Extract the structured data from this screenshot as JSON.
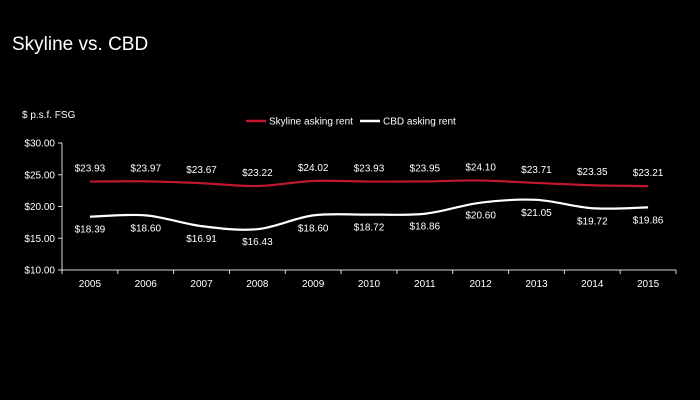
{
  "slide": {
    "title": "Skyline vs. CBD"
  },
  "colors": {
    "background": "#000000",
    "skyline": "#c0172f",
    "cbd": "#ffffff",
    "axis": "#d9d9d9"
  },
  "chart_data": {
    "type": "line",
    "title": "Skyline vs. CBD",
    "ylabel": "$ p.s.f. FSG",
    "xlabel": "",
    "x": [
      "2005",
      "2006",
      "2007",
      "2008",
      "2009",
      "2010",
      "2011",
      "2012",
      "2013",
      "2014",
      "2015"
    ],
    "ylim": [
      10,
      30
    ],
    "yticks": [
      "$10.00",
      "$15.00",
      "$20.00",
      "$25.00",
      "$30.00"
    ],
    "ytick_values": [
      10,
      15,
      20,
      25,
      30
    ],
    "grid": false,
    "legend_position": "top",
    "series": [
      {
        "name": "Skyline asking rent",
        "color": "#c0172f",
        "values": [
          23.93,
          23.97,
          23.67,
          23.22,
          24.02,
          23.93,
          23.95,
          24.1,
          23.71,
          23.35,
          23.21
        ],
        "labels": [
          "$23.93",
          "$23.97",
          "$23.67",
          "$23.22",
          "$24.02",
          "$23.93",
          "$23.95",
          "$24.10",
          "$23.71",
          "$23.35",
          "$23.21"
        ]
      },
      {
        "name": "CBD asking rent",
        "color": "#ffffff",
        "values": [
          18.39,
          18.6,
          16.91,
          16.43,
          18.6,
          18.72,
          18.86,
          20.6,
          21.05,
          19.72,
          19.86
        ],
        "labels": [
          "$18.39",
          "$18.60",
          "$16.91",
          "$16.43",
          "$18.60",
          "$18.72",
          "$18.86",
          "$20.60",
          "$21.05",
          "$19.72",
          "$19.86"
        ]
      }
    ]
  }
}
